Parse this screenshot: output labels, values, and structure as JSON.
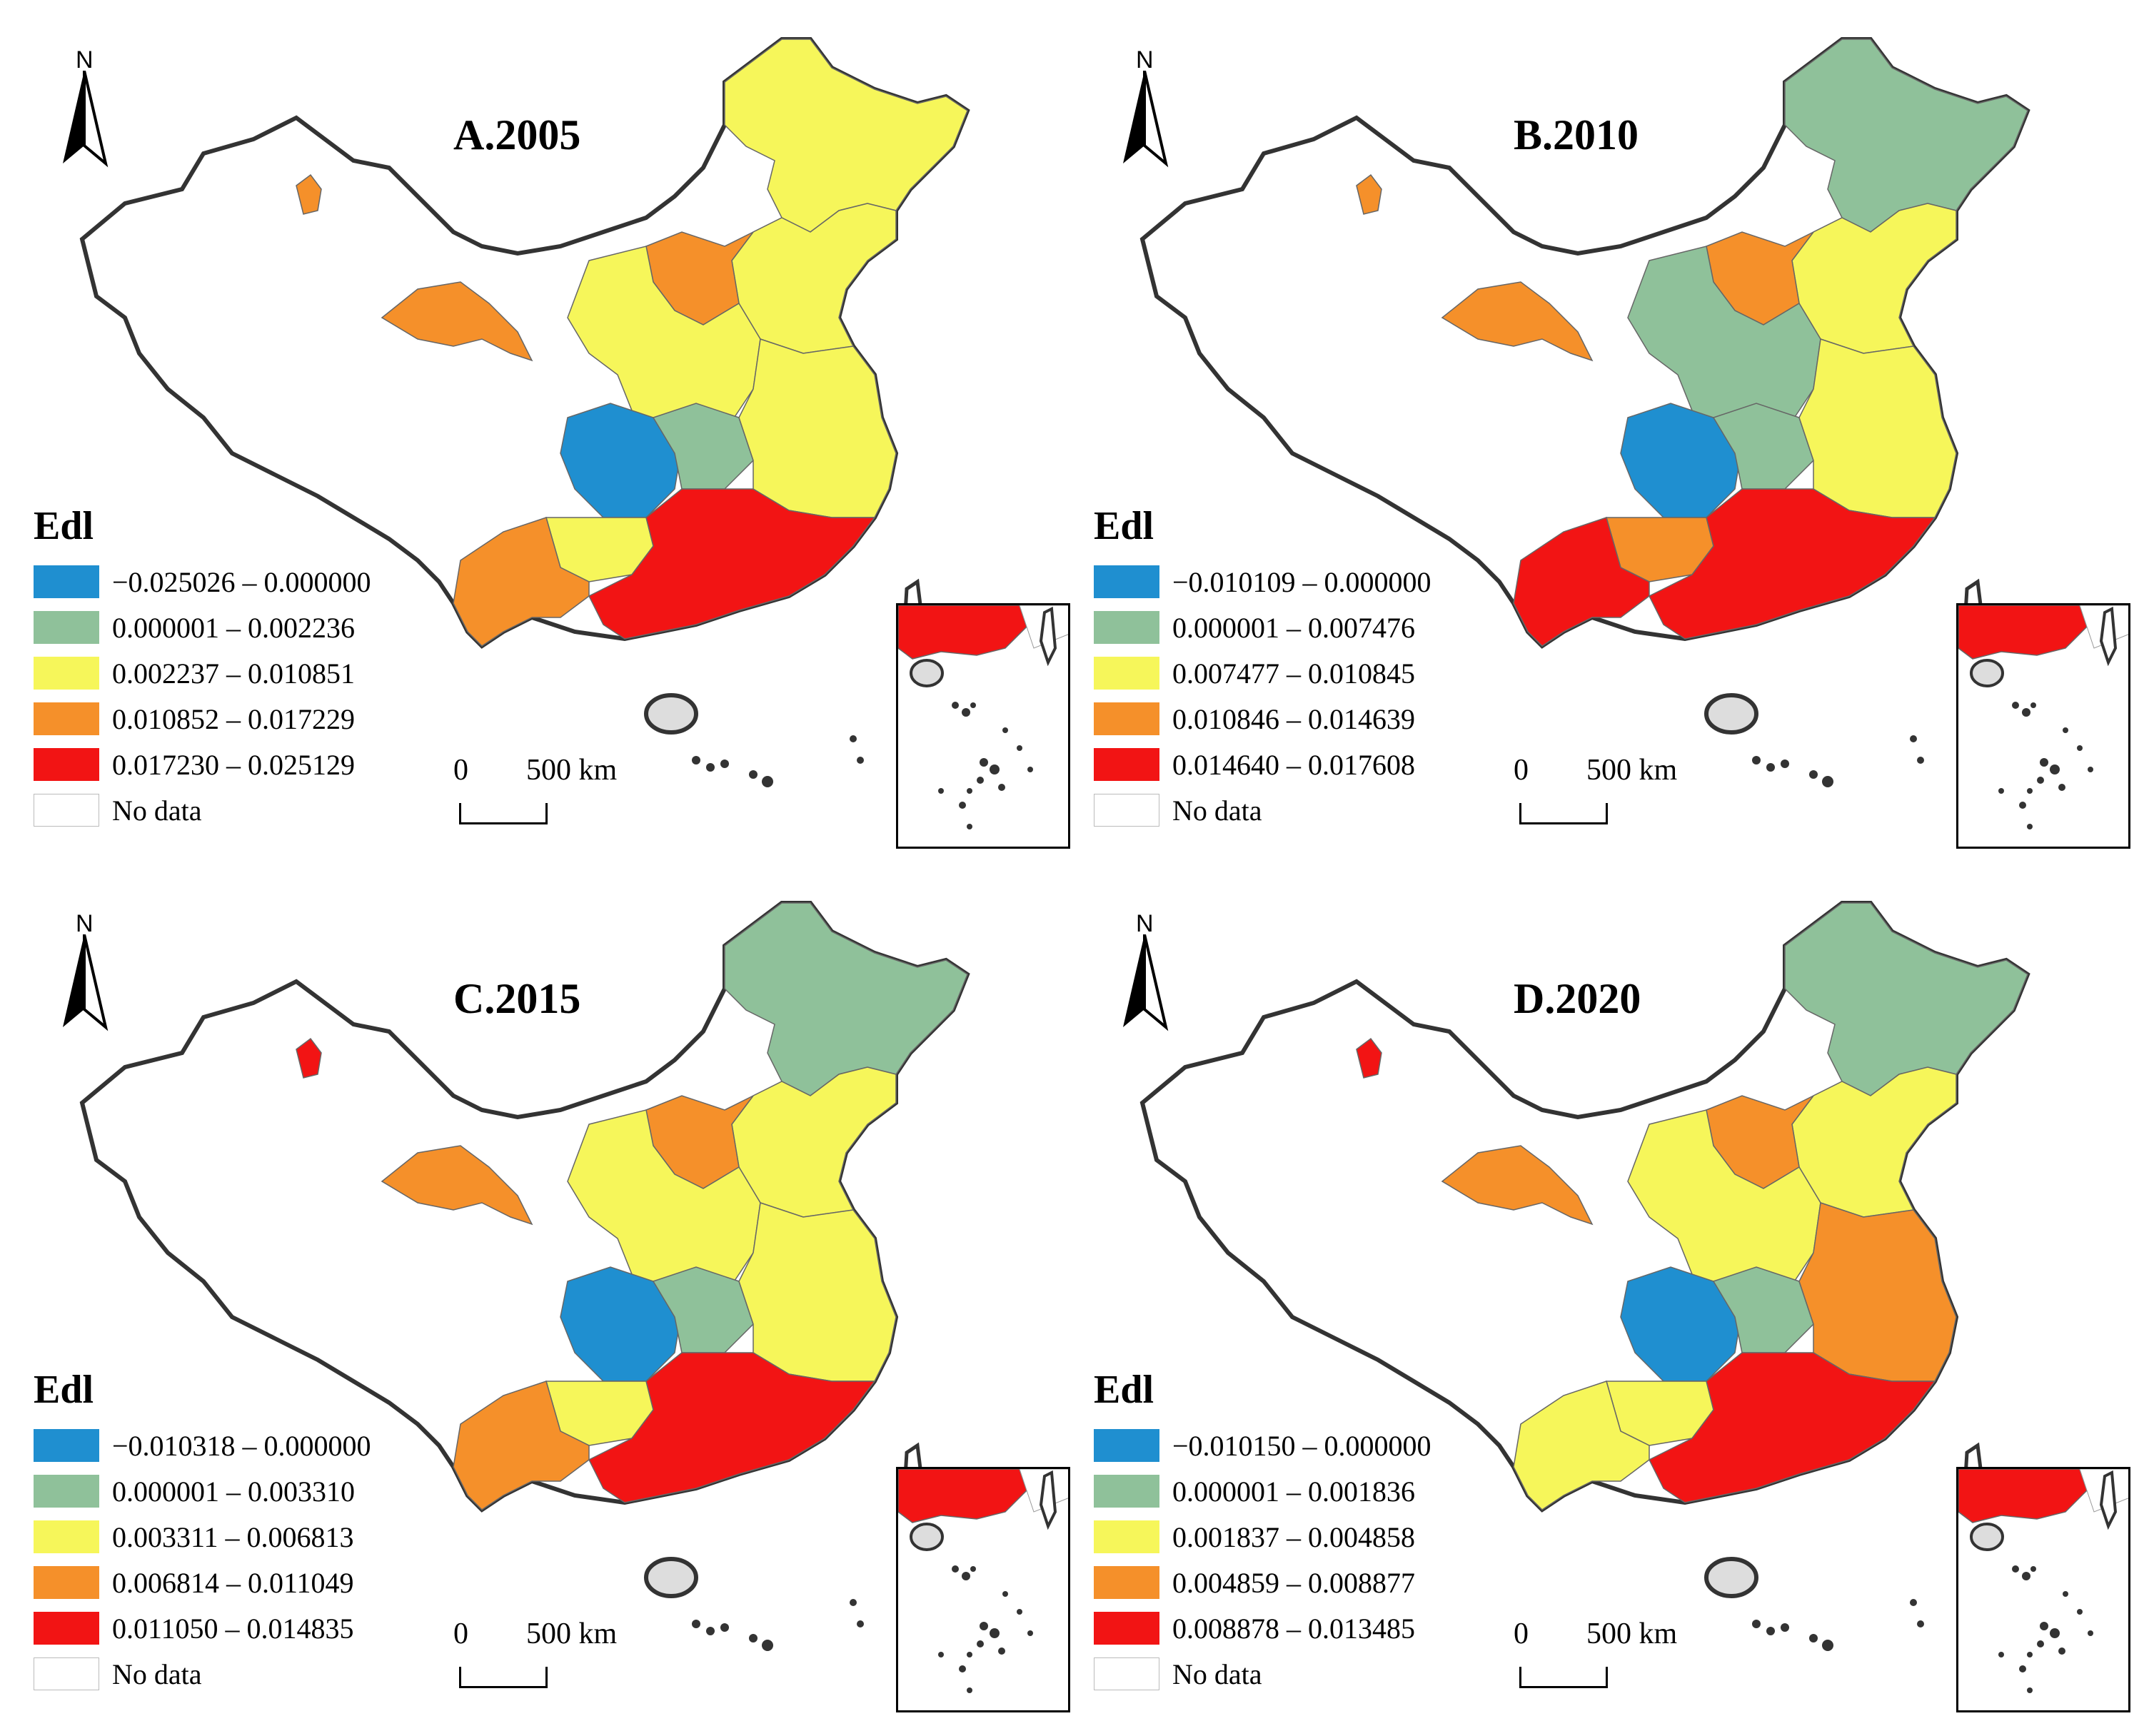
{
  "north_label": "N",
  "unit": "km",
  "scale_zero": "0",
  "scale_distance": "500",
  "legend_title": "Edl",
  "no_data_label": "No data",
  "class_colors": [
    "#1f8fd0",
    "#8fc19a",
    "#f6f65a",
    "#f5902a",
    "#f21414",
    "#ffffff"
  ],
  "panels": [
    {
      "id": "A",
      "title": "A.2005",
      "classes": [
        "−0.025026 – 0.000000",
        "0.000001 – 0.002236",
        "0.002237 – 0.010851",
        "0.010852 – 0.017229",
        "0.017230 – 0.025129"
      ],
      "regions": {
        "northeast": 2,
        "north_china": 2,
        "shanxi_inner": 3,
        "sichuan": 0,
        "central": 2,
        "east_coast": 2,
        "south": 4,
        "yunnan": 3,
        "xinjiang_north": 3,
        "gansu_west": 3,
        "guizhou": 2,
        "hubei": 1
      }
    },
    {
      "id": "B",
      "title": "B.2010",
      "classes": [
        "−0.010109 – 0.000000",
        "0.000001 – 0.007476",
        "0.007477 – 0.010845",
        "0.010846 – 0.014639",
        "0.014640 – 0.017608"
      ],
      "regions": {
        "northeast": 1,
        "north_china": 2,
        "shanxi_inner": 3,
        "sichuan": 0,
        "central": 1,
        "east_coast": 2,
        "south": 4,
        "yunnan": 4,
        "xinjiang_north": 3,
        "gansu_west": 3,
        "guizhou": 3,
        "hubei": 1
      }
    },
    {
      "id": "C",
      "title": "C.2015",
      "classes": [
        "−0.010318 – 0.000000",
        "0.000001 – 0.003310",
        "0.003311 – 0.006813",
        "0.006814 – 0.011049",
        "0.011050 – 0.014835"
      ],
      "regions": {
        "northeast": 1,
        "north_china": 2,
        "shanxi_inner": 3,
        "sichuan": 0,
        "central": 2,
        "east_coast": 2,
        "south": 4,
        "yunnan": 3,
        "xinjiang_north": 4,
        "gansu_west": 3,
        "guizhou": 2,
        "hubei": 1
      }
    },
    {
      "id": "D",
      "title": "D.2020",
      "classes": [
        "−0.010150 – 0.000000",
        "0.000001 – 0.001836",
        "0.001837 – 0.004858",
        "0.004859 – 0.008877",
        "0.008878 – 0.013485"
      ],
      "regions": {
        "northeast": 1,
        "north_china": 2,
        "shanxi_inner": 3,
        "sichuan": 0,
        "central": 2,
        "east_coast": 3,
        "south": 4,
        "yunnan": 2,
        "xinjiang_north": 4,
        "gansu_west": 3,
        "guizhou": 2,
        "hubei": 1
      }
    }
  ]
}
